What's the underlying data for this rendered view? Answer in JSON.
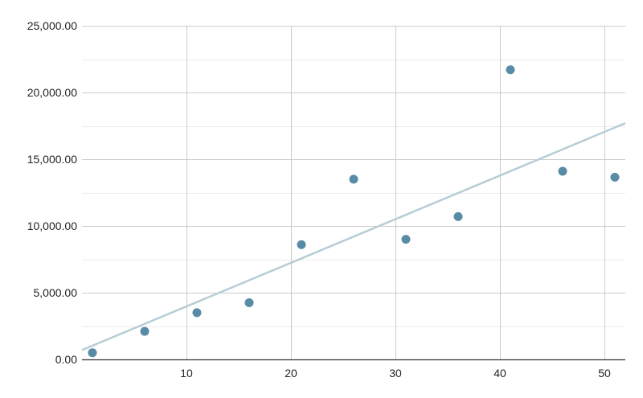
{
  "chart_data": {
    "type": "scatter",
    "title": "",
    "xlabel": "",
    "ylabel": "",
    "xlim": [
      0,
      52
    ],
    "ylim": [
      0,
      25000
    ],
    "x_ticks": [
      10,
      20,
      30,
      40,
      50
    ],
    "x_tick_labels": [
      "10",
      "20",
      "30",
      "40",
      "50"
    ],
    "y_ticks": [
      0,
      5000,
      10000,
      15000,
      20000,
      25000
    ],
    "y_tick_labels": [
      "0.00",
      "5,000.00",
      "10,000.00",
      "15,000.00",
      "20,000.00",
      "25,000.00"
    ],
    "grid": true,
    "point_color": "#5a8ba6",
    "trendline_color": "#b7cdd6",
    "series": [
      {
        "points": [
          {
            "x": 1,
            "y": 500
          },
          {
            "x": 6,
            "y": 2100
          },
          {
            "x": 11,
            "y": 3500
          },
          {
            "x": 16,
            "y": 4250
          },
          {
            "x": 21,
            "y": 8600
          },
          {
            "x": 26,
            "y": 13500
          },
          {
            "x": 31,
            "y": 9000
          },
          {
            "x": 36,
            "y": 10700
          },
          {
            "x": 41,
            "y": 21700
          },
          {
            "x": 46,
            "y": 14100
          },
          {
            "x": 51,
            "y": 13650
          }
        ],
        "trendline": {
          "x0": 0,
          "y0": 700,
          "x1": 52,
          "y1": 17700
        }
      }
    ]
  }
}
